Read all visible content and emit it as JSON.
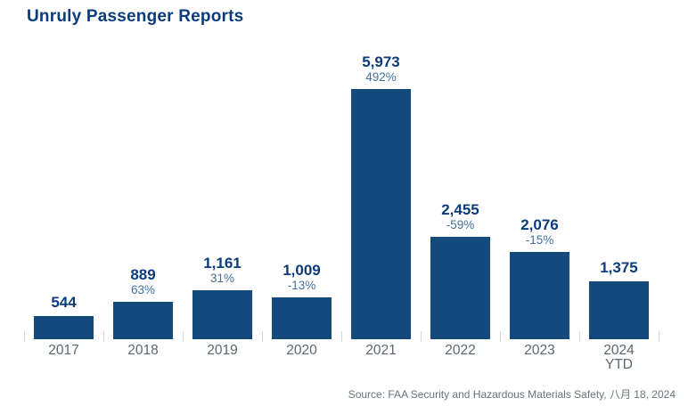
{
  "title": "Unruly Passenger Reports",
  "source_note": "Source: FAA Security and Hazardous Materials Safety, 八月 18, 2024",
  "colors": {
    "title": "#0c3c7c",
    "bar": "#14497e",
    "value_label": "#0c3c7c",
    "pct_label": "#44719e",
    "axis_label": "#5d6770",
    "source": "#6a737b",
    "tick": "#d9d9d9",
    "background": "#ffffff"
  },
  "chart_data": {
    "type": "bar",
    "title": "Unruly Passenger Reports",
    "categories": [
      "2017",
      "2018",
      "2019",
      "2020",
      "2021",
      "2022",
      "2023",
      "2024 YTD"
    ],
    "category_lines": [
      [
        "2017"
      ],
      [
        "2018"
      ],
      [
        "2019"
      ],
      [
        "2020"
      ],
      [
        "2021"
      ],
      [
        "2022"
      ],
      [
        "2023"
      ],
      [
        "2024",
        "YTD"
      ]
    ],
    "values": [
      544,
      889,
      1161,
      1009,
      5973,
      2455,
      2076,
      1375
    ],
    "value_labels": [
      "544",
      "889",
      "1,161",
      "1,009",
      "5,973",
      "2,455",
      "2,076",
      "1,375"
    ],
    "pct_change_labels": [
      "",
      "63%",
      "31%",
      "-13%",
      "492%",
      "-59%",
      "-15%",
      ""
    ],
    "xlabel": "",
    "ylabel": "",
    "ylim": [
      0,
      6000
    ],
    "grid": false,
    "legend": null,
    "y_axis_visible": false,
    "data_labels_position": "above-bar"
  }
}
